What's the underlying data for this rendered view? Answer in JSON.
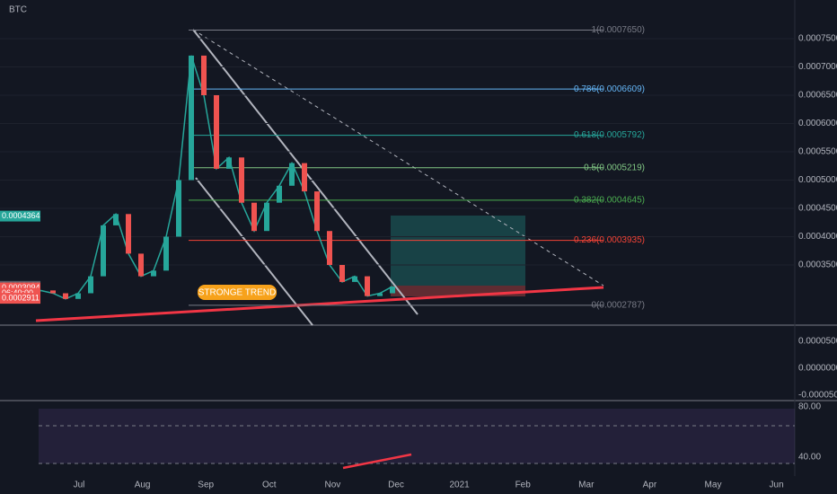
{
  "symbol": "BTC",
  "annotation": "STRONGE TREND",
  "price_axis": {
    "ylim": [
      0.00028,
      0.00078
    ],
    "ticks": [
      {
        "value": 0.00075,
        "label": "0.0007500"
      },
      {
        "value": 0.0007,
        "label": "0.0007000"
      },
      {
        "value": 0.00065,
        "label": "0.0006500"
      },
      {
        "value": 0.0006,
        "label": "0.0006000"
      },
      {
        "value": 0.00055,
        "label": "0.0005500"
      },
      {
        "value": 0.0005,
        "label": "0.0005000"
      },
      {
        "value": 0.00045,
        "label": "0.0004500"
      },
      {
        "value": 0.0004,
        "label": "0.0004000"
      },
      {
        "value": 0.00035,
        "label": "0.0003500"
      }
    ],
    "badges": [
      {
        "value": 0.0004364,
        "label": "0.0004364",
        "color": "#26a69a"
      },
      {
        "value": 0.0003122,
        "label": "0.0003122",
        "color": "#5d606b"
      },
      {
        "value": 0.0003094,
        "label": "0.0003094",
        "color": "#ef5350"
      },
      {
        "value": 0.0003,
        "label": "06:40:00",
        "color": "#ef5350"
      },
      {
        "value": 0.0002911,
        "label": "0.0002911",
        "color": "#ef5350"
      }
    ]
  },
  "fib_levels": [
    {
      "value": 0.000765,
      "label": "1(0.0007650)",
      "color": "#787b86"
    },
    {
      "value": 0.0006609,
      "label": "0.786(0.0006609)",
      "color": "#64b5f6"
    },
    {
      "value": 0.0005792,
      "label": "0.618(0.0005792)",
      "color": "#26a69a"
    },
    {
      "value": 0.0005219,
      "label": "0.5(0.0005219)",
      "color": "#81c784"
    },
    {
      "value": 0.0004645,
      "label": "0.382(0.0004645)",
      "color": "#4caf50"
    },
    {
      "value": 0.0003935,
      "label": "0.236(0.0003935)",
      "color": "#f44336"
    },
    {
      "value": 0.0002787,
      "label": "0(0.0002787)",
      "color": "#787b86"
    }
  ],
  "closes": [
    0.000305,
    0.0003,
    0.00029,
    0.0003,
    0.00033,
    0.00042,
    0.00044,
    0.00037,
    0.00033,
    0.00034,
    0.0004,
    0.0005,
    0.00072,
    0.00065,
    0.00052,
    0.00054,
    0.00046,
    0.00041,
    0.00046,
    0.00049,
    0.00053,
    0.00048,
    0.00041,
    0.00035,
    0.00032,
    0.00033,
    0.000295,
    0.0003,
    0.000312
  ],
  "macd_axis": {
    "ylim": [
      -6e-05,
      8e-05
    ],
    "ticks": [
      {
        "value": 5e-05,
        "label": "0.0000500"
      },
      {
        "value": 0,
        "label": "0.0000000"
      },
      {
        "value": -5e-05,
        "label": "-0.0000500"
      }
    ]
  },
  "rsi_axis": {
    "ylim": [
      25,
      85
    ],
    "ticks": [
      {
        "value": 80,
        "label": "80.00"
      },
      {
        "value": 40,
        "label": "40.00"
      }
    ]
  },
  "time_labels": [
    "Jul",
    "Aug",
    "Sep",
    "Oct",
    "Nov",
    "Dec",
    "2021",
    "Feb",
    "Mar",
    "Apr",
    "May",
    "Jun"
  ]
}
